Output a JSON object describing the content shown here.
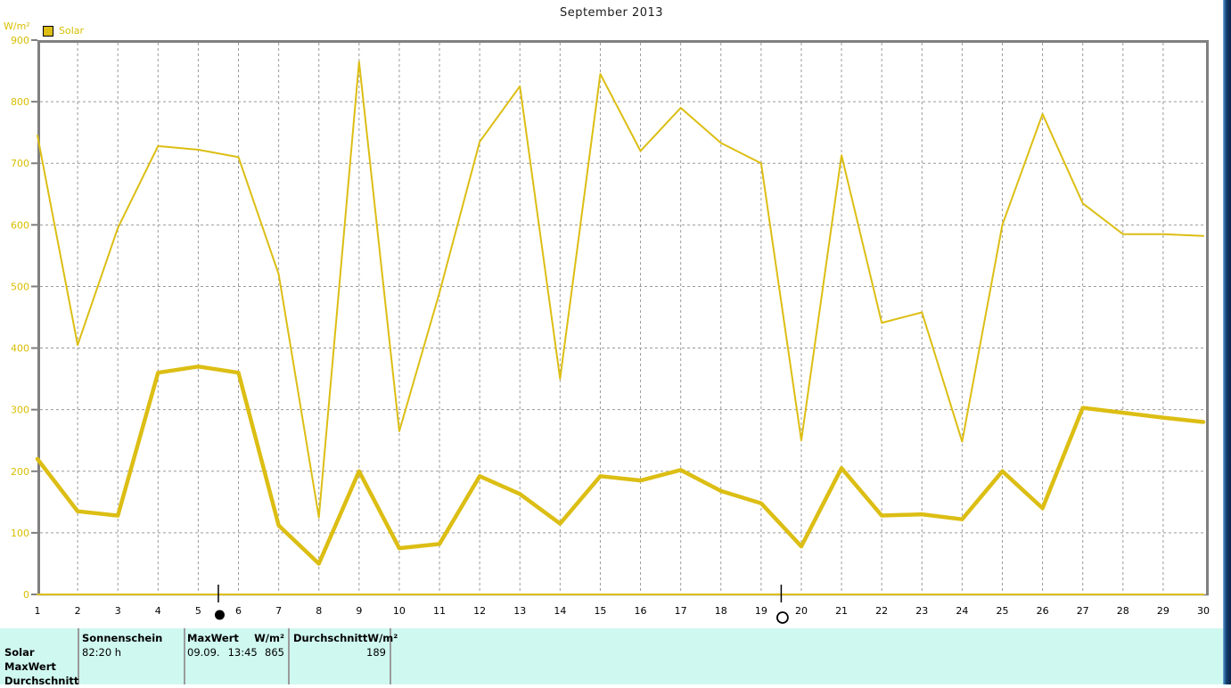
{
  "title": "September 2013",
  "unit_label": "W/m²",
  "legend": {
    "label": "Solar"
  },
  "chart_data": {
    "type": "line",
    "title": "September 2013",
    "xlabel": "",
    "ylabel": "W/m²",
    "x": [
      1,
      2,
      3,
      4,
      5,
      6,
      7,
      8,
      9,
      10,
      11,
      12,
      13,
      14,
      15,
      16,
      17,
      18,
      19,
      20,
      21,
      22,
      23,
      24,
      25,
      26,
      27,
      28,
      29,
      30
    ],
    "ylim": [
      0,
      900
    ],
    "ytick_step": 100,
    "grid": true,
    "legend_position": "top-left",
    "line_color": "#dcbe14",
    "series": [
      {
        "name": "MaxWert",
        "style": "thin",
        "values": [
          745,
          405,
          595,
          728,
          722,
          710,
          520,
          125,
          865,
          265,
          490,
          735,
          825,
          350,
          845,
          720,
          790,
          733,
          700,
          250,
          713,
          441,
          458,
          248,
          600,
          780,
          635,
          585,
          585,
          582
        ]
      },
      {
        "name": "Durchschnitt",
        "style": "thick",
        "values": [
          220,
          135,
          128,
          360,
          370,
          360,
          112,
          50,
          200,
          75,
          82,
          192,
          163,
          115,
          192,
          185,
          202,
          168,
          148,
          78,
          205,
          128,
          130,
          122,
          200,
          140,
          303,
          295,
          287,
          280
        ]
      },
      {
        "name": "Solar",
        "style": "thin",
        "values": [
          0,
          0,
          0,
          0,
          0,
          0,
          0,
          0,
          0,
          0,
          0,
          0,
          0,
          0,
          0,
          0,
          0,
          0,
          0,
          0,
          0,
          0,
          0,
          0,
          0,
          0,
          0,
          0,
          0,
          0
        ]
      }
    ],
    "annotations": [
      {
        "name": "new-moon",
        "symbol": "●",
        "x": 5.5
      },
      {
        "name": "full-moon",
        "symbol": "○",
        "x": 19.5
      }
    ]
  },
  "status_bar": {
    "row_labels": [
      "Solar",
      "MaxWert",
      "Durchschnitt"
    ],
    "sonnenschein": {
      "label": "Sonnenschein",
      "value": "82:20 h"
    },
    "maxwert": {
      "label": "MaxWert",
      "unit": "W/m²",
      "date": "09.09.",
      "time": "13:45",
      "value": "865"
    },
    "durchschnitt": {
      "label": "Durchschnitt",
      "unit": "W/m²",
      "value": "189"
    }
  },
  "colors": {
    "line": "#dcbe14",
    "axis_label": "#d8be00",
    "axis": "#808080",
    "grid": "#9a9a9a",
    "bar_background": "#cff8f0",
    "edge_strip": "#12355f"
  }
}
